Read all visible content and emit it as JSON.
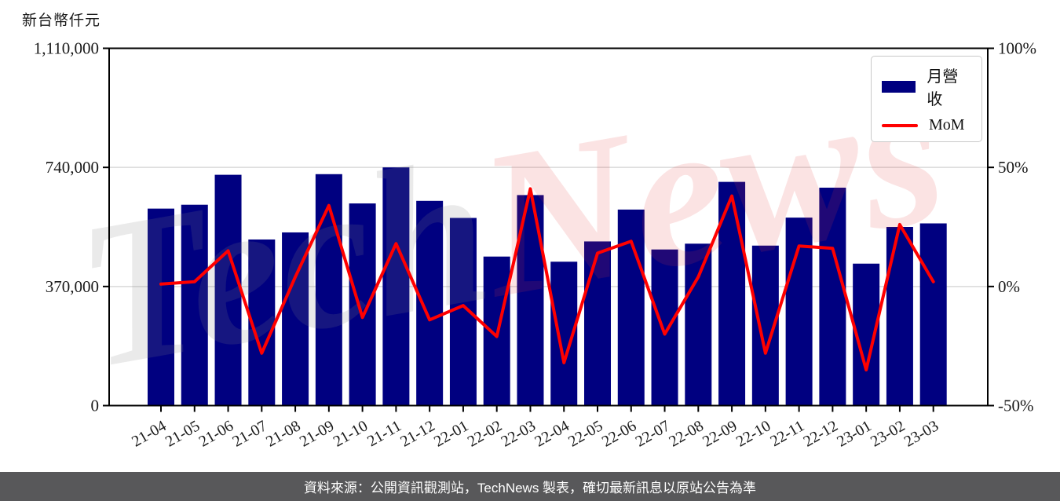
{
  "watermark": {
    "part1": "Tech",
    "part2": "News"
  },
  "footer": {
    "text": "資料來源：公開資訊觀測站，TechNews 製表，確切最新訊息以原站公告為準"
  },
  "chart_data": {
    "type": "bar+line",
    "title": "",
    "categories": [
      "21-04",
      "21-05",
      "21-06",
      "21-07",
      "21-08",
      "21-09",
      "21-10",
      "21-11",
      "21-12",
      "22-01",
      "22-02",
      "22-03",
      "22-04",
      "22-05",
      "22-06",
      "22-07",
      "22-08",
      "22-09",
      "22-10",
      "22-11",
      "22-12",
      "23-01",
      "23-02",
      "23-03"
    ],
    "series": [
      {
        "name": "月營收",
        "type": "bar",
        "axis": "left",
        "color": "#000080",
        "unit": "新台幣仟元",
        "values": [
          612000,
          624000,
          717000,
          516000,
          538000,
          719000,
          628000,
          740000,
          636000,
          583000,
          463000,
          654000,
          447000,
          510000,
          609000,
          485000,
          503000,
          695000,
          497000,
          584000,
          677000,
          441000,
          555000,
          566000
        ]
      },
      {
        "name": "MoM",
        "type": "line",
        "axis": "right",
        "color": "#ff0000",
        "unit": "%",
        "values": [
          1,
          2,
          15,
          -28,
          4,
          34,
          -13,
          18,
          -14,
          -8,
          -21,
          41,
          -32,
          14,
          19,
          -20,
          4,
          38,
          -28,
          17,
          16,
          -35,
          26,
          2
        ]
      }
    ],
    "left_axis": {
      "title": "新台幣仟元",
      "range": [
        0,
        1110000
      ],
      "ticks": [
        0,
        370000,
        740000,
        1110000
      ],
      "tick_labels": [
        "0",
        "370,000",
        "740,000",
        "1,110,000"
      ]
    },
    "right_axis": {
      "range": [
        -50,
        100
      ],
      "ticks": [
        -50,
        0,
        50,
        100
      ],
      "tick_labels": [
        "-50%",
        "0%",
        "50%",
        "100%"
      ]
    },
    "grid": true,
    "legend_position": "top-right"
  }
}
